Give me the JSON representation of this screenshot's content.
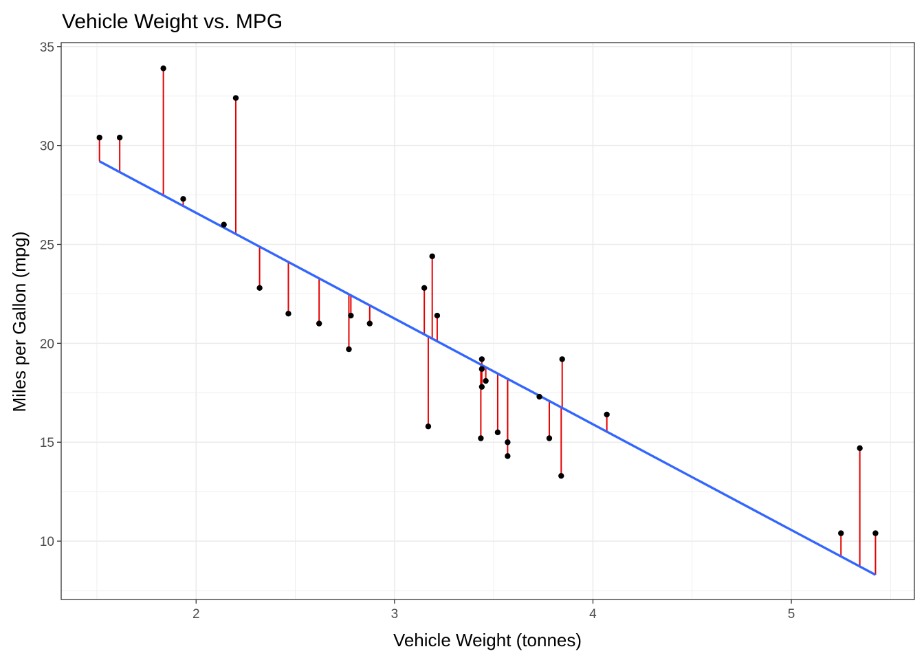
{
  "chart_data": {
    "type": "scatter",
    "title": "Vehicle Weight vs. MPG",
    "xlabel": "Vehicle Weight (tonnes)",
    "ylabel": "Miles per Gallon (mpg)",
    "xlim": [
      1.32,
      5.62
    ],
    "ylim": [
      7.05,
      35.2
    ],
    "x_ticks": [
      2,
      3,
      4,
      5
    ],
    "y_ticks": [
      10,
      15,
      20,
      25,
      30,
      35
    ],
    "grid": true,
    "legend": "none",
    "colors": {
      "points": "#000000",
      "fit_line": "#3366ff",
      "residuals": "#e60000",
      "grid": "#ebebeb",
      "panel_border": "#333333"
    },
    "regression": {
      "intercept": 37.2851,
      "slope": -5.3445
    },
    "points": [
      {
        "x": 1.513,
        "y": 30.4
      },
      {
        "x": 1.615,
        "y": 30.4
      },
      {
        "x": 1.835,
        "y": 33.9
      },
      {
        "x": 1.935,
        "y": 27.3
      },
      {
        "x": 2.14,
        "y": 26.0
      },
      {
        "x": 2.2,
        "y": 32.4
      },
      {
        "x": 2.32,
        "y": 22.8
      },
      {
        "x": 2.465,
        "y": 21.5
      },
      {
        "x": 2.62,
        "y": 21.0
      },
      {
        "x": 2.77,
        "y": 19.7
      },
      {
        "x": 2.78,
        "y": 21.4
      },
      {
        "x": 2.875,
        "y": 21.0
      },
      {
        "x": 3.15,
        "y": 22.8
      },
      {
        "x": 3.17,
        "y": 15.8
      },
      {
        "x": 3.19,
        "y": 24.4
      },
      {
        "x": 3.215,
        "y": 21.4
      },
      {
        "x": 3.435,
        "y": 15.2
      },
      {
        "x": 3.44,
        "y": 18.7
      },
      {
        "x": 3.44,
        "y": 19.2
      },
      {
        "x": 3.44,
        "y": 17.8
      },
      {
        "x": 3.46,
        "y": 18.1
      },
      {
        "x": 3.52,
        "y": 15.5
      },
      {
        "x": 3.57,
        "y": 14.3
      },
      {
        "x": 3.57,
        "y": 15.0
      },
      {
        "x": 3.73,
        "y": 17.3
      },
      {
        "x": 3.78,
        "y": 15.2
      },
      {
        "x": 3.84,
        "y": 13.3
      },
      {
        "x": 3.845,
        "y": 19.2
      },
      {
        "x": 4.07,
        "y": 16.4
      },
      {
        "x": 5.25,
        "y": 10.4
      },
      {
        "x": 5.345,
        "y": 14.7
      },
      {
        "x": 5.424,
        "y": 10.4
      }
    ]
  }
}
